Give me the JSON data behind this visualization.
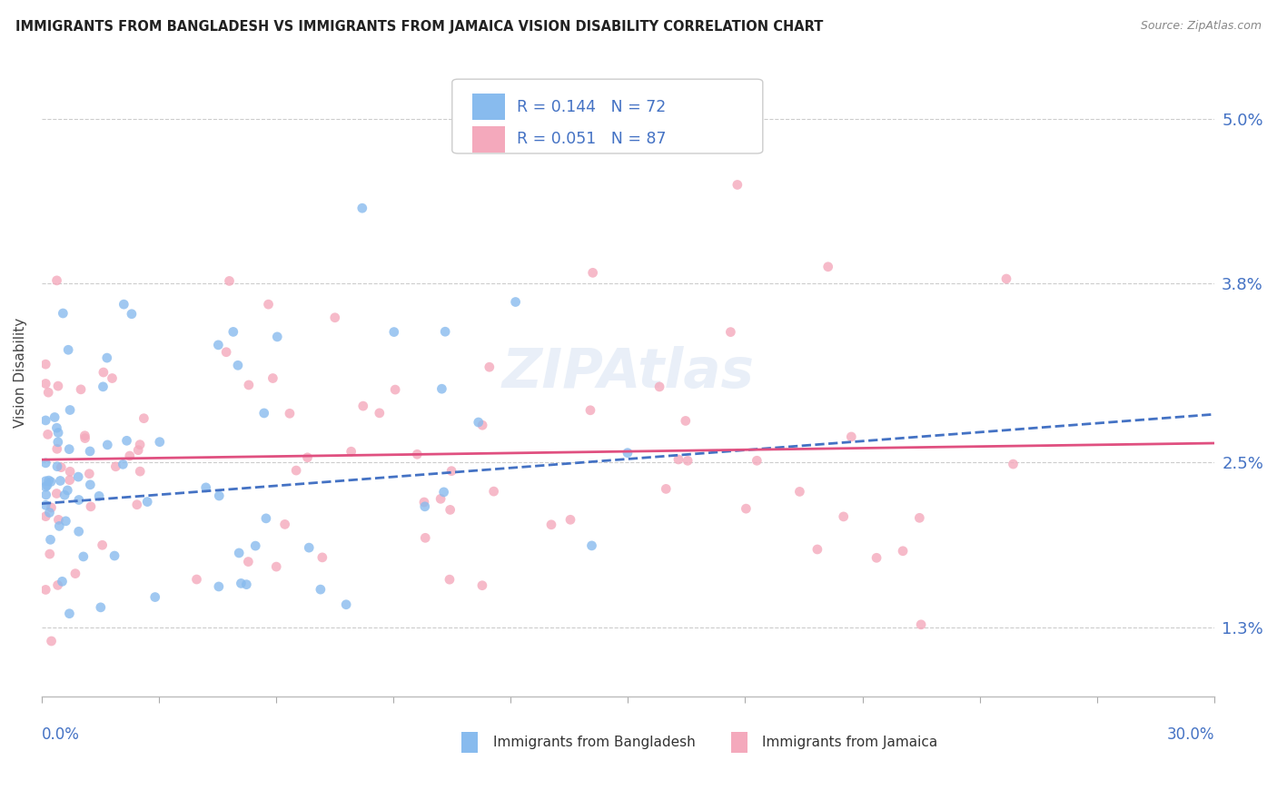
{
  "title": "IMMIGRANTS FROM BANGLADESH VS IMMIGRANTS FROM JAMAICA VISION DISABILITY CORRELATION CHART",
  "source": "Source: ZipAtlas.com",
  "ylabel": "Vision Disability",
  "xmin": 0.0,
  "xmax": 30.0,
  "ymin": 0.8,
  "ymax": 5.5,
  "yticks": [
    1.3,
    2.5,
    3.8,
    5.0
  ],
  "ytick_labels": [
    "1.3%",
    "2.5%",
    "3.8%",
    "5.0%"
  ],
  "series1_label": "Immigrants from Bangladesh",
  "series1_R": "0.144",
  "series1_N": "72",
  "series1_color": "#88bbee",
  "series1_line_color": "#4472C4",
  "series2_label": "Immigrants from Jamaica",
  "series2_R": "0.051",
  "series2_N": "87",
  "series2_color": "#f4a9bc",
  "series2_line_color": "#e05080",
  "watermark": "ZIPAtlas",
  "grid_color": "#cccccc",
  "title_color": "#222222",
  "source_color": "#888888",
  "axis_label_color": "#4472C4"
}
